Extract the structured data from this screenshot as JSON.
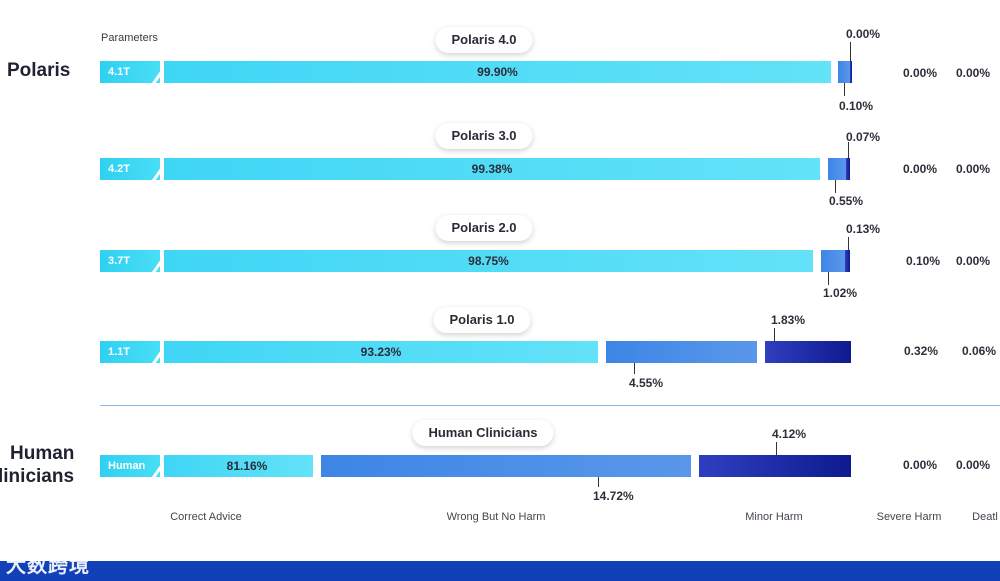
{
  "groups": {
    "polaris": "Polaris",
    "human_line1": "Human",
    "human_line2": "linicians"
  },
  "parameters_header": "Parameters",
  "chart_data": {
    "type": "bar",
    "stacked": true,
    "orientation": "horizontal",
    "categories": [
      "Correct Advice",
      "Wrong But No Harm",
      "Minor Harm",
      "Severe Harm",
      "Deatl"
    ],
    "rows": [
      {
        "model": "Polaris 4.0",
        "params": "4.1T",
        "values": [
          99.9,
          0.1,
          0.0,
          0.0,
          0.0
        ],
        "labels": [
          "99.90%",
          "0.10%",
          "0.00%",
          "0.00%",
          "0.00%"
        ]
      },
      {
        "model": "Polaris 3.0",
        "params": "4.2T",
        "values": [
          99.38,
          0.55,
          0.07,
          0.0,
          0.0
        ],
        "labels": [
          "99.38%",
          "0.55%",
          "0.07%",
          "0.00%",
          "0.00%"
        ]
      },
      {
        "model": "Polaris 2.0",
        "params": "3.7T",
        "values": [
          98.75,
          1.02,
          0.13,
          0.1,
          0.0
        ],
        "labels": [
          "98.75%",
          "1.02%",
          "0.13%",
          "0.10%",
          "0.00%"
        ]
      },
      {
        "model": "Polaris 1.0",
        "params": "1.1T",
        "values": [
          93.23,
          4.55,
          1.83,
          0.32,
          0.06
        ],
        "labels": [
          "93.23%",
          "4.55%",
          "1.83%",
          "0.32%",
          "0.06%"
        ]
      },
      {
        "model": "Human Clinicians",
        "params": "Human",
        "values": [
          81.16,
          14.72,
          4.12,
          0.0,
          0.0
        ],
        "labels": [
          "81.16%",
          "14.72%",
          "4.12%",
          "0.00%",
          "0.00%"
        ]
      }
    ],
    "colors": {
      "correct": "#45d8f6",
      "wrong": "#4a8de8",
      "minor": "#1a2599"
    }
  },
  "watermark": "大数跨境"
}
